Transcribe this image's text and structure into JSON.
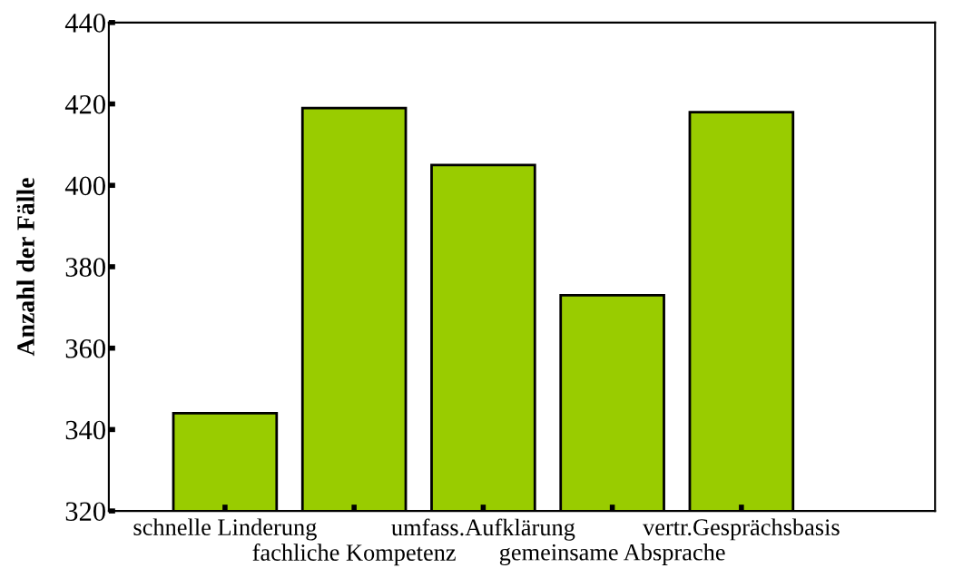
{
  "chart_data": {
    "type": "bar",
    "ylabel": "Anzahl der Fälle",
    "categories": [
      "schnelle Linderung",
      "fachliche Kompetenz",
      "umfass.Aufklärung",
      "gemeinsame Absprache",
      "vertr.Gesprächsbasis"
    ],
    "values": [
      344,
      419,
      405,
      373,
      418
    ],
    "color": "#99cc00",
    "ylim": [
      320,
      440
    ],
    "yticks": [
      320,
      340,
      360,
      380,
      400,
      420,
      440
    ],
    "grid": false
  }
}
